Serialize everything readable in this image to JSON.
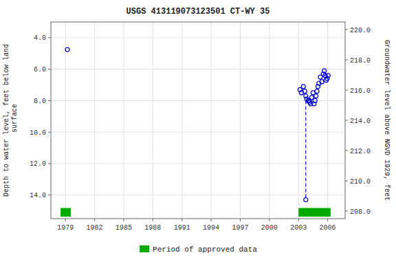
{
  "chart_data": {
    "type": "scatter",
    "title": "USGS 413119073123501  CT-WY     35",
    "ylabel": "Depth to water level, feet below land\n surface",
    "y2label": "Groundwater level above NGVD 1929, feet",
    "xlim": [
      1977.5,
      2007.8
    ],
    "ylim": [
      15.5,
      3.0
    ],
    "y2lim": [
      207.5,
      220.5
    ],
    "xticks": [
      1979,
      1982,
      1985,
      1988,
      1991,
      1994,
      1997,
      2000,
      2003,
      2006
    ],
    "yticks": [
      {
        "value": 4.0,
        "label": "4.0"
      },
      {
        "value": 6.0,
        "label": "6.0"
      },
      {
        "value": 8.0,
        "label": "8.0"
      },
      {
        "value": 10.0,
        "label": "10.0"
      },
      {
        "value": 12.0,
        "label": "12.0"
      },
      {
        "value": 14.0,
        "label": "14.0"
      }
    ],
    "y2ticks": [
      {
        "value": 208.0,
        "label": "208.0"
      },
      {
        "value": 210.0,
        "label": "210.0"
      },
      {
        "value": 212.0,
        "label": "212.0"
      },
      {
        "value": 214.0,
        "label": "214.0"
      },
      {
        "value": 216.0,
        "label": "216.0"
      },
      {
        "value": 218.0,
        "label": "218.0"
      },
      {
        "value": 220.0,
        "label": "220.0"
      }
    ],
    "grid": true,
    "legend": "bottom",
    "series": [
      {
        "type": "scatter",
        "color": "#0000cc",
        "marker": "circle",
        "x": [
          1979.2,
          2003.15,
          2003.3,
          2003.5,
          2003.65,
          2003.75,
          2003.85,
          2004.0,
          2004.1,
          2004.15,
          2004.25,
          2004.35,
          2004.5,
          2004.6,
          2004.7,
          2004.8,
          2004.9,
          2005.0,
          2005.1,
          2005.25,
          2005.4,
          2005.55,
          2005.65,
          2005.75,
          2005.85,
          2005.95,
          2006.05,
          2003.75
        ],
        "values": [
          4.75,
          7.3,
          7.5,
          7.1,
          7.4,
          7.7,
          7.9,
          8.0,
          8.0,
          8.1,
          8.2,
          7.8,
          7.5,
          8.2,
          8.0,
          7.7,
          7.4,
          7.1,
          6.9,
          6.5,
          6.8,
          6.3,
          6.1,
          6.4,
          6.7,
          6.6,
          6.4,
          14.3
        ]
      },
      {
        "type": "line",
        "color": "#0000cc",
        "line_style": "dashed",
        "x": [
          2003.75,
          2003.75
        ],
        "values": [
          8.0,
          14.3
        ]
      },
      {
        "type": "range_bar",
        "name": "Period of approved data",
        "color": "#00aa00",
        "x_start": [
          1978.5,
          2003.0
        ],
        "x_end": [
          1979.55,
          2006.3
        ],
        "y": 15.1,
        "height": 0.55
      }
    ]
  }
}
